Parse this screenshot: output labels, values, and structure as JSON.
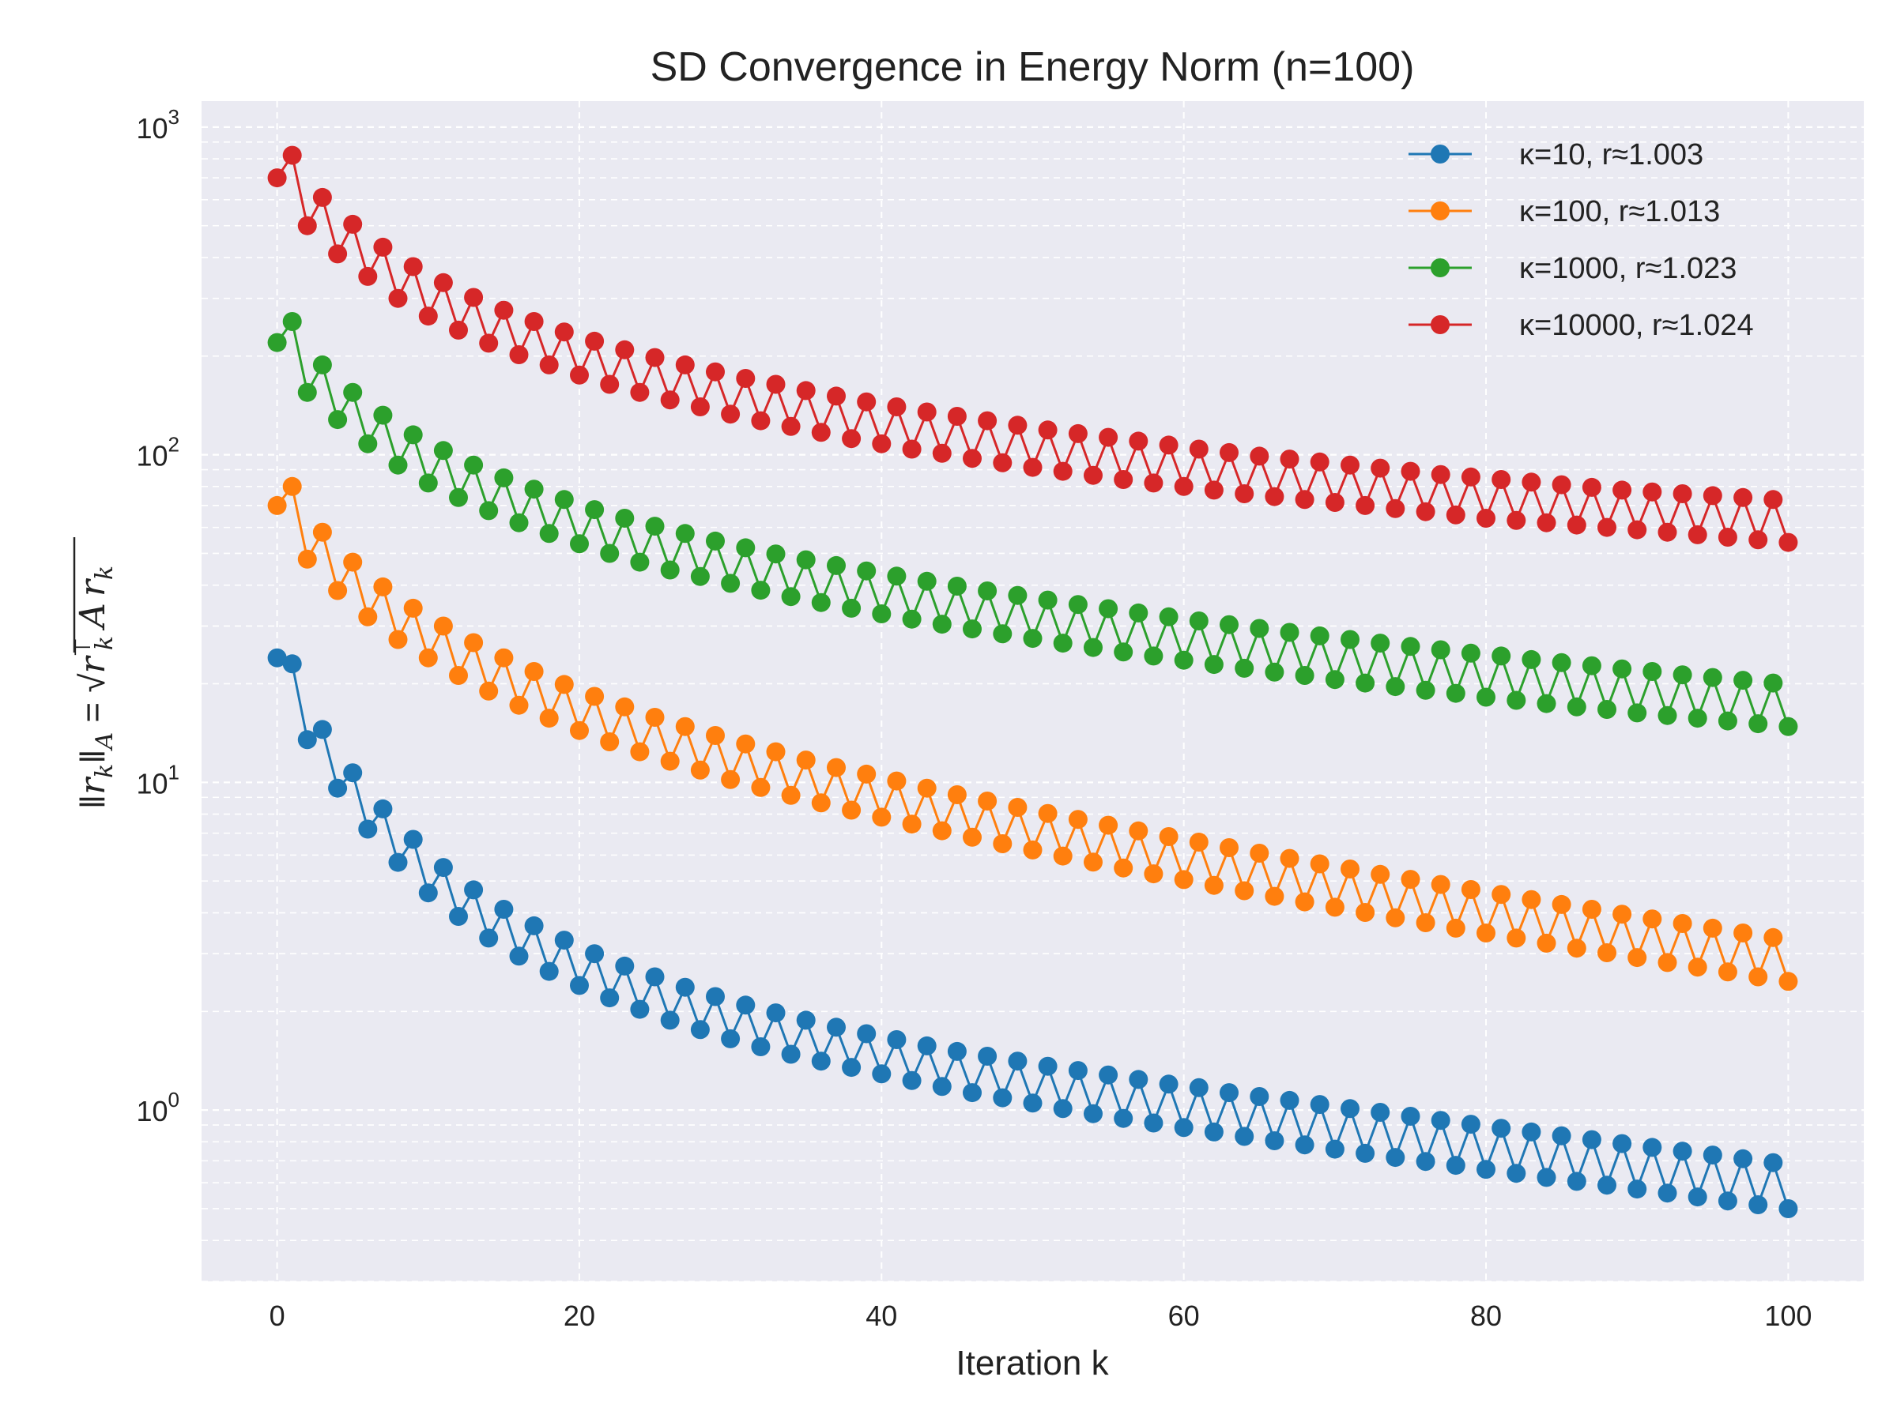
{
  "chart_data": {
    "type": "line",
    "title": "SD Convergence in Energy Norm (n=100)",
    "xlabel": "Iteration k",
    "ylabel": "‖r_k‖_A = √(r_kᵀ A r_k)",
    "ylabel_parts": {
      "norm": "‖",
      "r": "r",
      "k": "k",
      "A": "A",
      "eq": " = ",
      "sqrt": "√",
      "T": "⊤"
    },
    "yscale": "log",
    "xlim": [
      -5,
      105
    ],
    "ylim": [
      0.3,
      1200
    ],
    "x_ticks": [
      0,
      20,
      40,
      60,
      80,
      100
    ],
    "x_tick_labels": [
      "0",
      "20",
      "40",
      "60",
      "80",
      "100"
    ],
    "y_tick_base": "10",
    "y_tick_exponents": [
      0,
      1,
      2,
      3
    ],
    "grid": true,
    "legend_position": "top-right",
    "x": {
      "start": 0,
      "end": 100,
      "step": 1
    },
    "series": [
      {
        "name": "κ=10, r≈1.003",
        "color": "#1f77b4",
        "values": [
          24.0,
          23.0,
          13.5,
          14.5,
          9.6,
          10.7,
          7.2,
          8.3,
          5.7,
          6.7,
          4.6,
          5.5,
          3.9,
          4.7,
          3.35,
          4.1,
          2.95,
          3.65,
          2.65,
          3.3,
          2.4,
          3.0,
          2.2,
          2.75,
          2.03,
          2.55,
          1.88,
          2.37,
          1.76,
          2.22,
          1.65,
          2.09,
          1.56,
          1.98,
          1.48,
          1.88,
          1.41,
          1.79,
          1.35,
          1.71,
          1.29,
          1.64,
          1.23,
          1.57,
          1.18,
          1.51,
          1.13,
          1.46,
          1.09,
          1.41,
          1.05,
          1.36,
          1.01,
          1.32,
          0.975,
          1.28,
          0.943,
          1.24,
          0.913,
          1.2,
          0.884,
          1.17,
          0.857,
          1.13,
          0.831,
          1.1,
          0.806,
          1.07,
          0.783,
          1.04,
          0.76,
          1.01,
          0.738,
          0.984,
          0.717,
          0.957,
          0.697,
          0.93,
          0.678,
          0.905,
          0.659,
          0.88,
          0.641,
          0.857,
          0.623,
          0.834,
          0.606,
          0.812,
          0.59,
          0.79,
          0.574,
          0.769,
          0.558,
          0.749,
          0.543,
          0.729,
          0.528,
          0.71,
          0.514,
          0.691,
          0.5
        ]
      },
      {
        "name": "κ=100, r≈1.013",
        "color": "#ff7f0e",
        "values": [
          70.0,
          80.0,
          48.0,
          58.0,
          38.5,
          47.0,
          32.0,
          39.5,
          27.3,
          34.0,
          24.0,
          30.0,
          21.2,
          26.7,
          19.0,
          24.0,
          17.2,
          21.8,
          15.7,
          19.9,
          14.4,
          18.3,
          13.3,
          17.0,
          12.4,
          15.8,
          11.6,
          14.8,
          10.9,
          13.9,
          10.2,
          13.1,
          9.65,
          12.4,
          9.13,
          11.7,
          8.66,
          11.1,
          8.23,
          10.6,
          7.83,
          10.1,
          7.46,
          9.6,
          7.12,
          9.17,
          6.8,
          8.77,
          6.5,
          8.39,
          6.22,
          8.04,
          5.96,
          7.71,
          5.71,
          7.4,
          5.48,
          7.11,
          5.26,
          6.83,
          5.05,
          6.57,
          4.85,
          6.32,
          4.67,
          6.08,
          4.49,
          5.86,
          4.32,
          5.64,
          4.16,
          5.44,
          4.01,
          5.24,
          3.86,
          5.06,
          3.73,
          4.88,
          3.59,
          4.71,
          3.47,
          4.55,
          3.35,
          4.39,
          3.23,
          4.24,
          3.12,
          4.1,
          3.02,
          3.96,
          2.92,
          3.83,
          2.82,
          3.71,
          2.73,
          3.59,
          2.64,
          3.47,
          2.55,
          3.36,
          2.47
        ]
      },
      {
        "name": "κ=1000, r≈1.023",
        "color": "#2ca02c",
        "values": [
          220.0,
          255.0,
          155.0,
          188.0,
          128.0,
          155.0,
          108.0,
          132.0,
          93.0,
          115.0,
          82.0,
          103.0,
          74.0,
          93.0,
          67.5,
          85.0,
          62.0,
          78.5,
          57.5,
          73.0,
          53.5,
          68.0,
          50.0,
          64.0,
          47.0,
          60.5,
          44.5,
          57.5,
          42.5,
          54.5,
          40.5,
          52.0,
          38.6,
          49.8,
          36.9,
          47.8,
          35.4,
          45.9,
          34.0,
          44.2,
          32.7,
          42.6,
          31.5,
          41.1,
          30.4,
          39.7,
          29.4,
          38.4,
          28.4,
          37.2,
          27.5,
          36.0,
          26.6,
          34.9,
          25.8,
          33.9,
          25.0,
          32.9,
          24.3,
          32.0,
          23.6,
          31.1,
          22.9,
          30.3,
          22.3,
          29.5,
          21.7,
          28.7,
          21.2,
          28.0,
          20.6,
          27.3,
          20.1,
          26.6,
          19.6,
          26.0,
          19.1,
          25.4,
          18.7,
          24.8,
          18.2,
          24.3,
          17.8,
          23.7,
          17.4,
          23.2,
          17.0,
          22.7,
          16.7,
          22.2,
          16.3,
          21.8,
          16.0,
          21.3,
          15.7,
          20.9,
          15.4,
          20.5,
          15.1,
          20.1,
          14.8
        ]
      },
      {
        "name": "κ=10000, r≈1.024",
        "color": "#d62728",
        "values": [
          700.0,
          820.0,
          500.0,
          610.0,
          410.0,
          505.0,
          350.0,
          430.0,
          300.0,
          375.0,
          265.0,
          335.0,
          240.0,
          302.0,
          219.0,
          276.0,
          202.0,
          255.0,
          188.0,
          237.0,
          175.0,
          222.0,
          164.0,
          209.0,
          155.0,
          198.0,
          147.0,
          188.0,
          140.0,
          179.0,
          133.0,
          171.0,
          127.0,
          164.0,
          122.0,
          157.0,
          117.0,
          151.0,
          112.0,
          145.0,
          108.0,
          140.0,
          104.0,
          135.0,
          101.0,
          131.0,
          97.5,
          127.0,
          94.5,
          123.0,
          91.5,
          119.0,
          89.0,
          116.0,
          86.5,
          113.0,
          84.0,
          110.0,
          82.0,
          107.0,
          80.0,
          104.0,
          78.0,
          101.5,
          76.0,
          99.0,
          74.5,
          97.0,
          73.0,
          95.0,
          71.5,
          93.0,
          70.0,
          91.0,
          68.5,
          89.0,
          67.0,
          87.0,
          65.5,
          85.5,
          64.0,
          84.0,
          63.0,
          82.5,
          62.0,
          81.0,
          61.0,
          79.5,
          60.0,
          78.0,
          59.0,
          77.0,
          58.0,
          76.0,
          57.0,
          75.0,
          56.0,
          74.0,
          55.0,
          73.0,
          54.0
        ]
      }
    ]
  }
}
